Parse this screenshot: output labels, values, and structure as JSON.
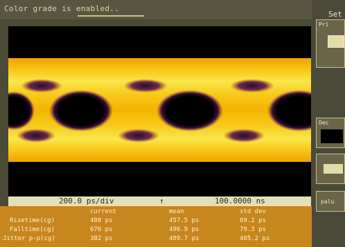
{
  "status": {
    "message": "Color grade is enabled.."
  },
  "side_panel": {
    "title": "Set",
    "buttons": [
      {
        "label": "Pri"
      },
      {
        "label": "Dec"
      },
      {
        "label": ""
      },
      {
        "label": "palu"
      }
    ]
  },
  "timebase": {
    "scale": "200.0 ps/div",
    "trigger_marker": "↑",
    "position": "100.0000 ns"
  },
  "measurements": {
    "headers": {
      "current": "current",
      "mean": "mean",
      "std_dev": "std dev"
    },
    "rows": [
      {
        "label": "Risetime(cg)",
        "current": "480 ps",
        "mean": "457.5 ps",
        "std_dev": "69.2 ps"
      },
      {
        "label": "Falltime(cg)",
        "current": "676 ps",
        "mean": "496.9 ps",
        "std_dev": "79.3 ps"
      },
      {
        "label": "Jitter p-p(cg)",
        "current": "382 ps",
        "mean": "489.7 ps",
        "std_dev": "405.2 ps"
      }
    ]
  },
  "colors": {
    "eye_hot": "#fae74a",
    "eye_warm": "#f2a000",
    "eye_cool": "#6b2a4a",
    "measurement_bg": "#c8861f"
  }
}
